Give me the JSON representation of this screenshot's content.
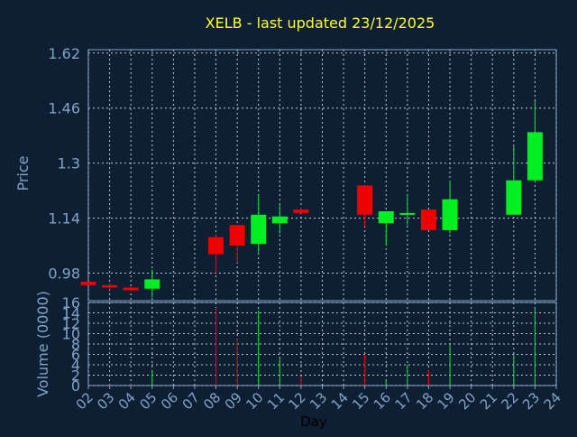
{
  "colors": {
    "background": "#0f1f33",
    "axis": "#7fa3c8",
    "grid": "#b8c8d8",
    "title": "#ffff33",
    "label": "#7fa3c8",
    "tick_label": "#7fa3c8",
    "xlabel": "#000000",
    "up": "#00ee22",
    "down": "#ee0000"
  },
  "chart_data": [
    {
      "type": "candlestick",
      "title": "XELB - last updated 23/12/2025",
      "ylabel": "Price",
      "ylim": [
        0.9,
        1.63
      ],
      "yticks": [
        "0.98",
        "1.14",
        "1.3",
        "1.46",
        "1.62"
      ],
      "xlim": [
        2,
        24
      ],
      "grid": true,
      "candles": [
        {
          "day": 2,
          "open": 0.955,
          "close": 0.945,
          "high": 0.955,
          "low": 0.945
        },
        {
          "day": 3,
          "open": 0.945,
          "close": 0.938,
          "high": 0.95,
          "low": 0.932
        },
        {
          "day": 4,
          "open": 0.938,
          "close": 0.93,
          "high": 0.94,
          "low": 0.928
        },
        {
          "day": 5,
          "open": 0.935,
          "close": 0.962,
          "high": 0.99,
          "low": 0.91
        },
        {
          "day": 8,
          "open": 1.085,
          "close": 1.035,
          "high": 1.09,
          "low": 0.98
        },
        {
          "day": 9,
          "open": 1.12,
          "close": 1.06,
          "high": 1.12,
          "low": 1.01
        },
        {
          "day": 10,
          "open": 1.065,
          "close": 1.15,
          "high": 1.21,
          "low": 1.04
        },
        {
          "day": 11,
          "open": 1.125,
          "close": 1.145,
          "high": 1.18,
          "low": 1.095
        },
        {
          "day": 12,
          "open": 1.165,
          "close": 1.155,
          "high": 1.17,
          "low": 1.155
        },
        {
          "day": 15,
          "open": 1.235,
          "close": 1.15,
          "high": 1.235,
          "low": 1.115
        },
        {
          "day": 16,
          "open": 1.125,
          "close": 1.16,
          "high": 1.16,
          "low": 1.06
        },
        {
          "day": 17,
          "open": 1.15,
          "close": 1.155,
          "high": 1.21,
          "low": 1.12
        },
        {
          "day": 18,
          "open": 1.165,
          "close": 1.105,
          "high": 1.165,
          "low": 1.105
        },
        {
          "day": 19,
          "open": 1.105,
          "close": 1.195,
          "high": 1.25,
          "low": 1.095
        },
        {
          "day": 22,
          "open": 1.15,
          "close": 1.25,
          "high": 1.35,
          "low": 1.15
        },
        {
          "day": 23,
          "open": 1.25,
          "close": 1.39,
          "high": 1.48,
          "low": 1.25
        }
      ]
    },
    {
      "type": "bar",
      "ylabel": "Volume (0000)",
      "xlabel": "Day",
      "ylim": [
        0,
        16
      ],
      "yticks": [
        "0",
        "2",
        "4",
        "6",
        "8",
        "10",
        "12",
        "14",
        "16"
      ],
      "xticks": [
        "02",
        "03",
        "04",
        "05",
        "06",
        "07",
        "08",
        "09",
        "10",
        "11",
        "12",
        "13",
        "14",
        "15",
        "16",
        "17",
        "18",
        "19",
        "20",
        "21",
        "22",
        "23",
        "24"
      ],
      "xlim": [
        2,
        24
      ],
      "grid": true,
      "bars": [
        {
          "day": 2,
          "value": 0.1,
          "dir": "down"
        },
        {
          "day": 3,
          "value": 0.2,
          "dir": "down"
        },
        {
          "day": 4,
          "value": 0.2,
          "dir": "down"
        },
        {
          "day": 5,
          "value": 3.0,
          "dir": "up"
        },
        {
          "day": 8,
          "value": 15.0,
          "dir": "down"
        },
        {
          "day": 9,
          "value": 9.0,
          "dir": "down"
        },
        {
          "day": 10,
          "value": 14.5,
          "dir": "up"
        },
        {
          "day": 11,
          "value": 5.2,
          "dir": "up"
        },
        {
          "day": 12,
          "value": 1.8,
          "dir": "down"
        },
        {
          "day": 15,
          "value": 6.0,
          "dir": "down"
        },
        {
          "day": 16,
          "value": 1.0,
          "dir": "up"
        },
        {
          "day": 17,
          "value": 4.0,
          "dir": "up"
        },
        {
          "day": 18,
          "value": 3.0,
          "dir": "down"
        },
        {
          "day": 19,
          "value": 8.0,
          "dir": "up"
        },
        {
          "day": 22,
          "value": 6.0,
          "dir": "up"
        },
        {
          "day": 23,
          "value": 15.0,
          "dir": "up"
        }
      ]
    }
  ]
}
